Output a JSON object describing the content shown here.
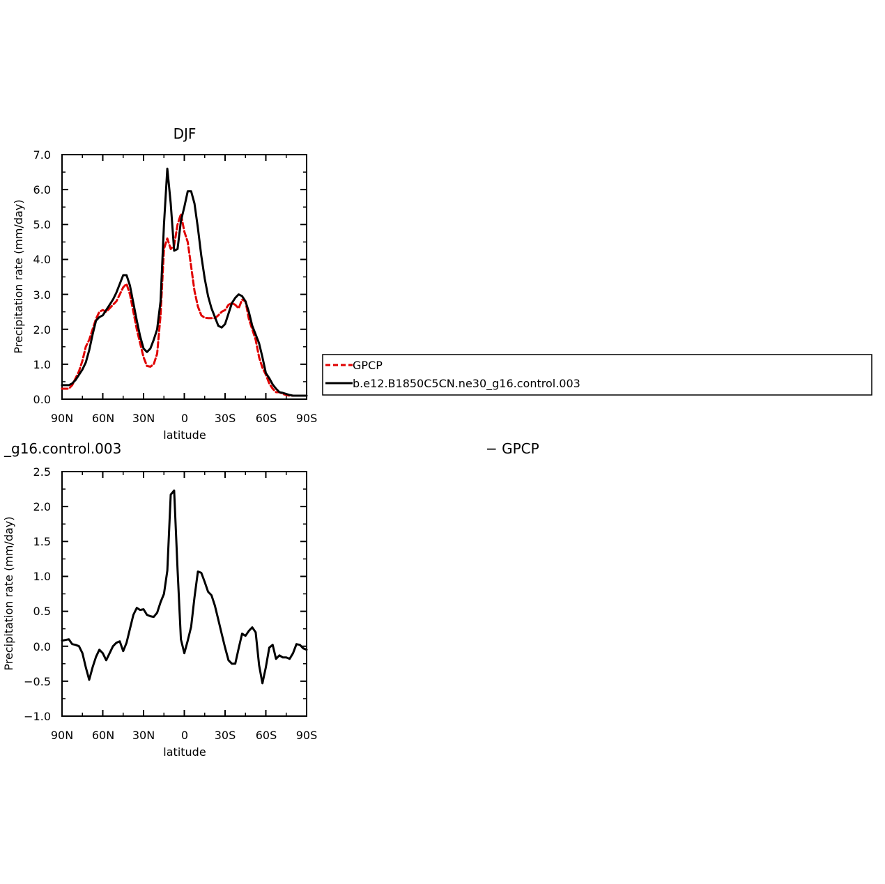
{
  "chart_data": [
    {
      "type": "line",
      "title": "DJF",
      "xlabel": "latitude",
      "ylabel": "Precipitation rate (mm/day)",
      "xlim": [
        90,
        -90
      ],
      "ylim": [
        0,
        7
      ],
      "x_ticks": [
        90,
        60,
        30,
        0,
        -30,
        -60,
        -90
      ],
      "x_tick_labels": [
        "90N",
        "60N",
        "30N",
        "0",
        "30S",
        "60S",
        "90S"
      ],
      "y_ticks": [
        0,
        1,
        2,
        3,
        4,
        5,
        6,
        7
      ],
      "y_tick_labels": [
        "0.0",
        "1.0",
        "2.0",
        "3.0",
        "4.0",
        "5.0",
        "6.0",
        "7.0"
      ],
      "grid": false,
      "legend_position": "right",
      "series": [
        {
          "name": "GPCP",
          "color": "#e00000",
          "dash": "dashed",
          "x": [
            90,
            87.5,
            85,
            82.5,
            80,
            77.5,
            75,
            72.5,
            70,
            67.5,
            65,
            62.5,
            60,
            57.5,
            55,
            52.5,
            50,
            47.5,
            45,
            42.5,
            40,
            37.5,
            35,
            32.5,
            30,
            27.5,
            25,
            22.5,
            20,
            17.5,
            15,
            12.5,
            10,
            7.5,
            5,
            2.5,
            0,
            -2.5,
            -5,
            -7.5,
            -10,
            -12.5,
            -15,
            -17.5,
            -20,
            -22.5,
            -25,
            -27.5,
            -30,
            -32.5,
            -35,
            -37.5,
            -40,
            -42.5,
            -45,
            -47.5,
            -50,
            -52.5,
            -55,
            -57.5,
            -60,
            -62.5,
            -65,
            -67.5,
            -70,
            -72.5,
            -75,
            -77.5,
            -80,
            -82.5,
            -85,
            -87.5,
            -90
          ],
          "y": [
            0.3,
            0.3,
            0.3,
            0.4,
            0.6,
            0.8,
            1.1,
            1.5,
            1.7,
            2.0,
            2.3,
            2.5,
            2.55,
            2.5,
            2.6,
            2.7,
            2.8,
            3.0,
            3.2,
            3.3,
            3.0,
            2.5,
            2.0,
            1.6,
            1.2,
            0.95,
            0.93,
            1.0,
            1.3,
            2.4,
            4.3,
            4.6,
            4.3,
            4.4,
            5.0,
            5.3,
            4.8,
            4.5,
            3.8,
            3.1,
            2.65,
            2.4,
            2.33,
            2.32,
            2.32,
            2.32,
            2.4,
            2.5,
            2.55,
            2.7,
            2.75,
            2.7,
            2.6,
            2.85,
            2.8,
            2.3,
            2.0,
            1.7,
            1.2,
            0.9,
            0.7,
            0.45,
            0.3,
            0.2,
            0.2,
            0.15,
            0.12,
            0.1,
            0.1,
            0.1,
            0.1,
            0.1,
            0.1
          ]
        },
        {
          "name": "b.e12.B1850C5CN.ne30_g16.control.003",
          "color": "#000000",
          "dash": "solid",
          "x": [
            90,
            87.5,
            85,
            82.5,
            80,
            77.5,
            75,
            72.5,
            70,
            67.5,
            65,
            62.5,
            60,
            57.5,
            55,
            52.5,
            50,
            47.5,
            45,
            42.5,
            40,
            37.5,
            35,
            32.5,
            30,
            27.5,
            25,
            22.5,
            20,
            17.5,
            15,
            12.5,
            10,
            7.5,
            5,
            2.5,
            0,
            -2.5,
            -5,
            -7.5,
            -10,
            -12.5,
            -15,
            -17.5,
            -20,
            -22.5,
            -25,
            -27.5,
            -30,
            -32.5,
            -35,
            -37.5,
            -40,
            -42.5,
            -45,
            -47.5,
            -50,
            -52.5,
            -55,
            -57.5,
            -60,
            -62.5,
            -65,
            -67.5,
            -70,
            -72.5,
            -75,
            -77.5,
            -80,
            -82.5,
            -85,
            -87.5,
            -90
          ],
          "y": [
            0.4,
            0.4,
            0.4,
            0.45,
            0.55,
            0.7,
            0.85,
            1.05,
            1.4,
            1.85,
            2.25,
            2.35,
            2.4,
            2.55,
            2.7,
            2.85,
            3.05,
            3.3,
            3.55,
            3.55,
            3.25,
            2.75,
            2.25,
            1.8,
            1.45,
            1.35,
            1.45,
            1.7,
            2.0,
            2.8,
            5.0,
            6.6,
            5.6,
            4.25,
            4.3,
            5.1,
            5.5,
            5.95,
            5.95,
            5.6,
            4.9,
            4.1,
            3.45,
            2.95,
            2.6,
            2.35,
            2.1,
            2.05,
            2.15,
            2.45,
            2.75,
            2.9,
            3.0,
            2.95,
            2.8,
            2.5,
            2.1,
            1.85,
            1.6,
            1.2,
            0.75,
            0.6,
            0.42,
            0.3,
            0.2,
            0.18,
            0.15,
            0.12,
            0.1,
            0.1,
            0.1,
            0.1,
            0.1
          ]
        }
      ]
    },
    {
      "type": "line",
      "title": "_g16.control.003",
      "title_right": "− GPCP",
      "xlabel": "latitude",
      "ylabel": "Precipitation rate (mm/day)",
      "xlim": [
        90,
        -90
      ],
      "ylim": [
        -1,
        2.5
      ],
      "x_ticks": [
        90,
        60,
        30,
        0,
        -30,
        -60,
        -90
      ],
      "x_tick_labels": [
        "90N",
        "60N",
        "30N",
        "0",
        "30S",
        "60S",
        "90S"
      ],
      "y_ticks": [
        -1,
        -0.5,
        0,
        0.5,
        1,
        1.5,
        2,
        2.5
      ],
      "y_tick_labels": [
        "−1.0",
        "−0.5",
        "0.0",
        "0.5",
        "1.0",
        "1.5",
        "2.0",
        "2.5"
      ],
      "grid": false,
      "series": [
        {
          "color": "#000000",
          "dash": "solid",
          "x": [
            90,
            87.5,
            85,
            82.5,
            80,
            77.5,
            75,
            72.5,
            70,
            67.5,
            65,
            62.5,
            60,
            57.5,
            55,
            52.5,
            50,
            47.5,
            45,
            42.5,
            40,
            37.5,
            35,
            32.5,
            30,
            27.5,
            25,
            22.5,
            20,
            17.5,
            15,
            12.5,
            10,
            7.5,
            5,
            2.5,
            0,
            -2.5,
            -5,
            -7.5,
            -10,
            -12.5,
            -15,
            -17.5,
            -20,
            -22.5,
            -25,
            -27.5,
            -30,
            -32.5,
            -35,
            -37.5,
            -40,
            -42.5,
            -45,
            -47.5,
            -50,
            -52.5,
            -55,
            -57.5,
            -60,
            -62.5,
            -65,
            -67.5,
            -70,
            -72.5,
            -75,
            -77.5,
            -80,
            -82.5,
            -85,
            -87.5,
            -90
          ],
          "y": [
            0.08,
            0.09,
            0.1,
            0.03,
            0.02,
            0.0,
            -0.1,
            -0.3,
            -0.48,
            -0.3,
            -0.15,
            -0.05,
            -0.1,
            -0.2,
            -0.1,
            0.0,
            0.05,
            0.07,
            -0.07,
            0.05,
            0.25,
            0.45,
            0.55,
            0.52,
            0.53,
            0.45,
            0.43,
            0.42,
            0.48,
            0.63,
            0.75,
            1.08,
            2.17,
            2.23,
            1.1,
            0.1,
            -0.1,
            0.08,
            0.28,
            0.7,
            1.07,
            1.05,
            0.92,
            0.78,
            0.73,
            0.58,
            0.38,
            0.18,
            -0.02,
            -0.2,
            -0.25,
            -0.25,
            -0.03,
            0.18,
            0.15,
            0.22,
            0.27,
            0.2,
            -0.27,
            -0.53,
            -0.3,
            -0.02,
            0.02,
            -0.18,
            -0.13,
            -0.16,
            -0.16,
            -0.18,
            -0.1,
            0.03,
            0.02,
            -0.03,
            -0.05
          ]
        }
      ]
    }
  ]
}
